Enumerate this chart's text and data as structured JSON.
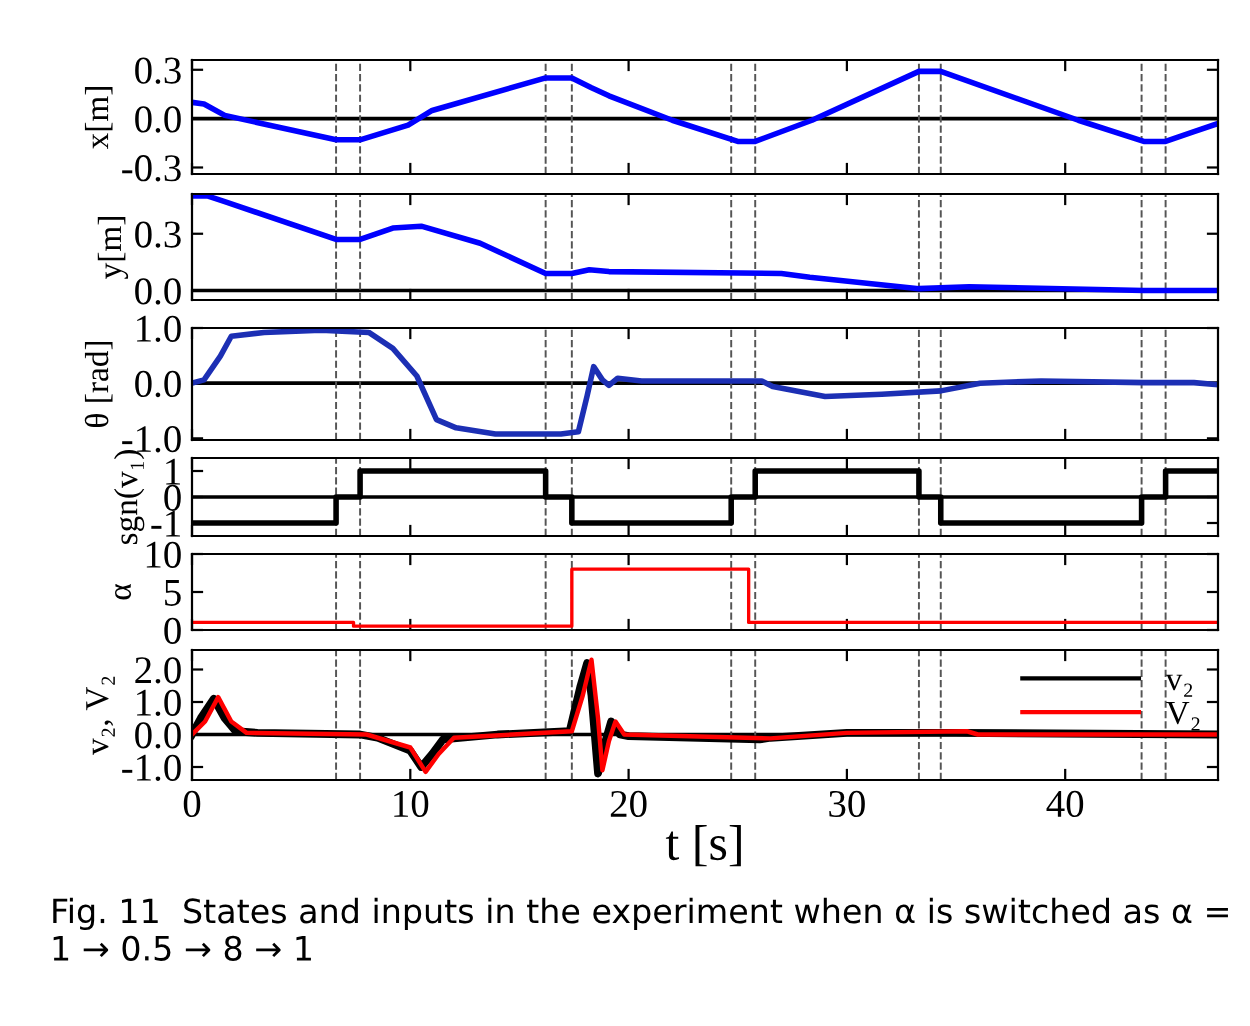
{
  "chart_data": [
    {
      "type": "line",
      "ylabel": "x[m]",
      "xlim": [
        0,
        47
      ],
      "xticks": [
        0,
        10,
        20,
        30,
        40
      ],
      "ylim": [
        -0.34,
        0.36
      ],
      "yticks": [
        {
          "value": -0.3,
          "label": "-0.3"
        },
        {
          "value": 0.0,
          "label": "0.0"
        },
        {
          "value": 0.3,
          "label": "0.3"
        }
      ],
      "tick_labels": "y",
      "grid": false,
      "legend": false,
      "marker": "none",
      "line_style": "solid",
      "series": [
        {
          "color": "#0000ff",
          "x": [
            0,
            0.55,
            1.5,
            6.6,
            7.7,
            9.9,
            11,
            16.2,
            17.4,
            18.3,
            19.1,
            22,
            25,
            25.8,
            28.4,
            33.3,
            34.3,
            40.6,
            43.6,
            44.6,
            45.9,
            47
          ],
          "values": [
            0.1,
            0.09,
            0.02,
            -0.13,
            -0.13,
            -0.04,
            0.05,
            0.25,
            0.25,
            0.19,
            0.14,
            -0.01,
            -0.14,
            -0.14,
            -0.01,
            0.29,
            0.29,
            -0.01,
            -0.14,
            -0.14,
            -0.08,
            -0.03
          ]
        }
      ],
      "ref_lines": [
        {
          "axis": "y",
          "value": 0,
          "color": "#000000",
          "line_style": "solid"
        },
        {
          "axis": "x",
          "value": 6.6,
          "color": "#555555",
          "line_style": "dashed"
        },
        {
          "axis": "x",
          "value": 7.7,
          "color": "#555555",
          "line_style": "dashed"
        },
        {
          "axis": "x",
          "value": 16.2,
          "color": "#555555",
          "line_style": "dashed"
        },
        {
          "axis": "x",
          "value": 17.4,
          "color": "#555555",
          "line_style": "dashed"
        },
        {
          "axis": "x",
          "value": 24.7,
          "color": "#555555",
          "line_style": "dashed"
        },
        {
          "axis": "x",
          "value": 25.8,
          "color": "#555555",
          "line_style": "dashed"
        },
        {
          "axis": "x",
          "value": 33.3,
          "color": "#555555",
          "line_style": "dashed"
        },
        {
          "axis": "x",
          "value": 34.3,
          "color": "#555555",
          "line_style": "dashed"
        },
        {
          "axis": "x",
          "value": 43.5,
          "color": "#555555",
          "line_style": "dashed"
        },
        {
          "axis": "x",
          "value": 44.6,
          "color": "#555555",
          "line_style": "dashed"
        }
      ]
    },
    {
      "type": "line",
      "ylabel": "y[m]",
      "xlim": [
        0,
        47
      ],
      "xticks": [
        0,
        10,
        20,
        30,
        40
      ],
      "ylim": [
        -0.05,
        0.51
      ],
      "yticks": [
        {
          "value": 0.0,
          "label": "0.0"
        },
        {
          "value": 0.3,
          "label": "0.3"
        }
      ],
      "tick_labels": "y",
      "grid": false,
      "legend": false,
      "marker": "none",
      "line_style": "solid",
      "series": [
        {
          "color": "#0000ff",
          "x": [
            0,
            0.7,
            1.5,
            6.6,
            7.7,
            9.2,
            10.5,
            13.2,
            16.2,
            17.4,
            18.2,
            19.1,
            27,
            28.3,
            33.3,
            35.6,
            43.6,
            47
          ],
          "values": [
            0.5,
            0.5,
            0.47,
            0.27,
            0.27,
            0.33,
            0.34,
            0.25,
            0.09,
            0.09,
            0.11,
            0.1,
            0.09,
            0.07,
            0.01,
            0.02,
            0.0,
            0.0
          ]
        }
      ],
      "ref_lines": [
        {
          "axis": "y",
          "value": 0,
          "color": "#000000",
          "line_style": "solid"
        },
        {
          "axis": "x",
          "value": 6.6,
          "color": "#555555",
          "line_style": "dashed"
        },
        {
          "axis": "x",
          "value": 7.7,
          "color": "#555555",
          "line_style": "dashed"
        },
        {
          "axis": "x",
          "value": 16.2,
          "color": "#555555",
          "line_style": "dashed"
        },
        {
          "axis": "x",
          "value": 17.4,
          "color": "#555555",
          "line_style": "dashed"
        },
        {
          "axis": "x",
          "value": 24.7,
          "color": "#555555",
          "line_style": "dashed"
        },
        {
          "axis": "x",
          "value": 25.8,
          "color": "#555555",
          "line_style": "dashed"
        },
        {
          "axis": "x",
          "value": 33.3,
          "color": "#555555",
          "line_style": "dashed"
        },
        {
          "axis": "x",
          "value": 34.3,
          "color": "#555555",
          "line_style": "dashed"
        },
        {
          "axis": "x",
          "value": 43.5,
          "color": "#555555",
          "line_style": "dashed"
        },
        {
          "axis": "x",
          "value": 44.6,
          "color": "#555555",
          "line_style": "dashed"
        }
      ]
    },
    {
      "type": "line",
      "ylabel": "θ [rad]",
      "xlim": [
        0,
        47
      ],
      "xticks": [
        0,
        10,
        20,
        30,
        40
      ],
      "ylim": [
        -1.03,
        1.0
      ],
      "yticks": [
        {
          "value": -1.0,
          "label": "-1.0"
        },
        {
          "value": 0.0,
          "label": "0.0"
        },
        {
          "value": 1.0,
          "label": "1.0"
        }
      ],
      "tick_labels": "y",
      "grid": false,
      "legend": false,
      "marker": "none",
      "line_style": "solid",
      "series": [
        {
          "color": "#1c2fb4",
          "x": [
            0,
            0.55,
            1.3,
            1.8,
            3.3,
            5.9,
            8.1,
            9.2,
            10.3,
            11.2,
            12.1,
            13.9,
            16.9,
            17.7,
            18.1,
            18.4,
            18.8,
            19.1,
            19.5,
            20.6,
            26.1,
            26.6,
            29,
            31.6,
            34.3,
            36.1,
            38.9,
            43.6,
            45.9,
            47
          ],
          "values": [
            0,
            0.06,
            0.49,
            0.85,
            0.92,
            0.96,
            0.92,
            0.63,
            0.13,
            -0.66,
            -0.81,
            -0.92,
            -0.92,
            -0.88,
            -0.23,
            0.3,
            0.06,
            -0.04,
            0.09,
            0.04,
            0.04,
            -0.06,
            -0.24,
            -0.2,
            -0.14,
            0.0,
            0.04,
            0.01,
            0.01,
            -0.03
          ]
        }
      ],
      "ref_lines": [
        {
          "axis": "y",
          "value": 0,
          "color": "#000000",
          "line_style": "solid"
        },
        {
          "axis": "x",
          "value": 6.6,
          "color": "#555555",
          "line_style": "dashed"
        },
        {
          "axis": "x",
          "value": 7.7,
          "color": "#555555",
          "line_style": "dashed"
        },
        {
          "axis": "x",
          "value": 16.2,
          "color": "#555555",
          "line_style": "dashed"
        },
        {
          "axis": "x",
          "value": 17.4,
          "color": "#555555",
          "line_style": "dashed"
        },
        {
          "axis": "x",
          "value": 24.7,
          "color": "#555555",
          "line_style": "dashed"
        },
        {
          "axis": "x",
          "value": 25.8,
          "color": "#555555",
          "line_style": "dashed"
        },
        {
          "axis": "x",
          "value": 33.3,
          "color": "#555555",
          "line_style": "dashed"
        },
        {
          "axis": "x",
          "value": 34.3,
          "color": "#555555",
          "line_style": "dashed"
        },
        {
          "axis": "x",
          "value": 43.5,
          "color": "#555555",
          "line_style": "dashed"
        },
        {
          "axis": "x",
          "value": 44.6,
          "color": "#555555",
          "line_style": "dashed"
        }
      ]
    },
    {
      "type": "step",
      "ylabel": "sgn(v₁)",
      "xlim": [
        0,
        47
      ],
      "xticks": [
        0,
        10,
        20,
        30,
        40
      ],
      "ylim": [
        -1.5,
        1.5
      ],
      "yticks": [
        -1,
        0,
        1
      ],
      "tick_labels": "y",
      "grid": false,
      "legend": false,
      "marker": "none",
      "line_style": "solid",
      "series": [
        {
          "color": "#000000",
          "x": [
            0,
            6.6,
            7.7,
            16.2,
            17.4,
            24.7,
            25.8,
            33.3,
            34.3,
            43.5,
            44.6,
            47
          ],
          "values": [
            -1,
            0,
            1,
            0,
            -1,
            0,
            1,
            0,
            -1,
            0,
            1,
            1
          ]
        }
      ],
      "ref_lines": [
        {
          "axis": "y",
          "value": 0,
          "color": "#000000",
          "line_style": "solid"
        },
        {
          "axis": "x",
          "value": 6.6,
          "color": "#555555",
          "line_style": "dashed"
        },
        {
          "axis": "x",
          "value": 7.7,
          "color": "#555555",
          "line_style": "dashed"
        },
        {
          "axis": "x",
          "value": 16.2,
          "color": "#555555",
          "line_style": "dashed"
        },
        {
          "axis": "x",
          "value": 17.4,
          "color": "#555555",
          "line_style": "dashed"
        },
        {
          "axis": "x",
          "value": 24.7,
          "color": "#555555",
          "line_style": "dashed"
        },
        {
          "axis": "x",
          "value": 25.8,
          "color": "#555555",
          "line_style": "dashed"
        },
        {
          "axis": "x",
          "value": 33.3,
          "color": "#555555",
          "line_style": "dashed"
        },
        {
          "axis": "x",
          "value": 34.3,
          "color": "#555555",
          "line_style": "dashed"
        },
        {
          "axis": "x",
          "value": 43.5,
          "color": "#555555",
          "line_style": "dashed"
        },
        {
          "axis": "x",
          "value": 44.6,
          "color": "#555555",
          "line_style": "dashed"
        }
      ]
    },
    {
      "type": "step",
      "ylabel": "α",
      "xlim": [
        0,
        47
      ],
      "xticks": [
        0,
        10,
        20,
        30,
        40
      ],
      "ylim": [
        0,
        10
      ],
      "yticks": [
        0,
        5,
        10
      ],
      "tick_labels": "y",
      "grid": false,
      "legend": false,
      "marker": "none",
      "line_style": "solid",
      "series": [
        {
          "color": "#ff0000",
          "x": [
            0,
            7.4,
            17.4,
            25.5,
            47
          ],
          "values": [
            1,
            0.5,
            8,
            1,
            1
          ]
        }
      ],
      "ref_lines": [
        {
          "axis": "x",
          "value": 6.6,
          "color": "#555555",
          "line_style": "dashed"
        },
        {
          "axis": "x",
          "value": 7.7,
          "color": "#555555",
          "line_style": "dashed"
        },
        {
          "axis": "x",
          "value": 16.2,
          "color": "#555555",
          "line_style": "dashed"
        },
        {
          "axis": "x",
          "value": 17.4,
          "color": "#555555",
          "line_style": "dashed"
        },
        {
          "axis": "x",
          "value": 24.7,
          "color": "#555555",
          "line_style": "dashed"
        },
        {
          "axis": "x",
          "value": 25.8,
          "color": "#555555",
          "line_style": "dashed"
        },
        {
          "axis": "x",
          "value": 33.3,
          "color": "#555555",
          "line_style": "dashed"
        },
        {
          "axis": "x",
          "value": 34.3,
          "color": "#555555",
          "line_style": "dashed"
        },
        {
          "axis": "x",
          "value": 43.5,
          "color": "#555555",
          "line_style": "dashed"
        },
        {
          "axis": "x",
          "value": 44.6,
          "color": "#555555",
          "line_style": "dashed"
        }
      ]
    },
    {
      "type": "line",
      "ylabel": "v₂, V₂",
      "xlabel": "t [s]",
      "xlim": [
        0,
        47
      ],
      "xticks": [
        0,
        10,
        20,
        30,
        40
      ],
      "ylim": [
        -1.4,
        2.6
      ],
      "yticks": [
        {
          "value": -1.0,
          "label": "-1.0"
        },
        {
          "value": 0.0,
          "label": "0.0"
        },
        {
          "value": 1.0,
          "label": "1.0"
        },
        {
          "value": 2.0,
          "label": "2.0"
        }
      ],
      "grid": false,
      "legend": "top right",
      "marker": "none",
      "line_style": "solid",
      "annotations": [
        "Fig. 11  States and inputs in the experiment when α is switched as α = 1 → 0.5 → 8 → 1"
      ],
      "series": [
        {
          "name": "v₂",
          "color": "#000000",
          "x": [
            0,
            0.4,
            1.0,
            1.5,
            2,
            3,
            7.7,
            8.5,
            10,
            10.5,
            11,
            11.5,
            14,
            17.3,
            17.8,
            18.1,
            18.3,
            18.6,
            18.9,
            19.2,
            19.6,
            20,
            26,
            26.5,
            30,
            35,
            47
          ],
          "values": [
            0,
            0.5,
            1.1,
            0.5,
            0.1,
            0.05,
            0,
            -0.1,
            -0.5,
            -1.0,
            -0.6,
            -0.15,
            0,
            0.1,
            1.5,
            2.2,
            1.2,
            -1.2,
            -0.3,
            0.4,
            0.0,
            -0.05,
            -0.15,
            -0.1,
            0.05,
            0.05,
            0
          ]
        },
        {
          "name": "V₂",
          "color": "#ff0000",
          "x": [
            0,
            0.6,
            1.2,
            1.8,
            2.5,
            8,
            10,
            10.7,
            11.3,
            12,
            17.4,
            17.9,
            18.3,
            18.6,
            18.8,
            19.1,
            19.4,
            19.8,
            26.5,
            30,
            35.5,
            36,
            47
          ],
          "values": [
            0,
            0.4,
            1.15,
            0.4,
            0.05,
            0,
            -0.4,
            -1.15,
            -0.6,
            -0.1,
            0.1,
            1.2,
            2.3,
            0.5,
            -1.1,
            -0.2,
            0.4,
            0,
            -0.12,
            0.05,
            0.1,
            0,
            0
          ]
        }
      ],
      "ref_lines": [
        {
          "axis": "y",
          "value": 0,
          "color": "#000000",
          "line_style": "solid"
        },
        {
          "axis": "x",
          "value": 6.6,
          "color": "#555555",
          "line_style": "dashed"
        },
        {
          "axis": "x",
          "value": 7.7,
          "color": "#555555",
          "line_style": "dashed"
        },
        {
          "axis": "x",
          "value": 16.2,
          "color": "#555555",
          "line_style": "dashed"
        },
        {
          "axis": "x",
          "value": 17.4,
          "color": "#555555",
          "line_style": "dashed"
        },
        {
          "axis": "x",
          "value": 24.7,
          "color": "#555555",
          "line_style": "dashed"
        },
        {
          "axis": "x",
          "value": 25.8,
          "color": "#555555",
          "line_style": "dashed"
        },
        {
          "axis": "x",
          "value": 33.3,
          "color": "#555555",
          "line_style": "dashed"
        },
        {
          "axis": "x",
          "value": 34.3,
          "color": "#555555",
          "line_style": "dashed"
        },
        {
          "axis": "x",
          "value": 43.5,
          "color": "#555555",
          "line_style": "dashed"
        },
        {
          "axis": "x",
          "value": 44.6,
          "color": "#555555",
          "line_style": "dashed"
        }
      ]
    }
  ]
}
